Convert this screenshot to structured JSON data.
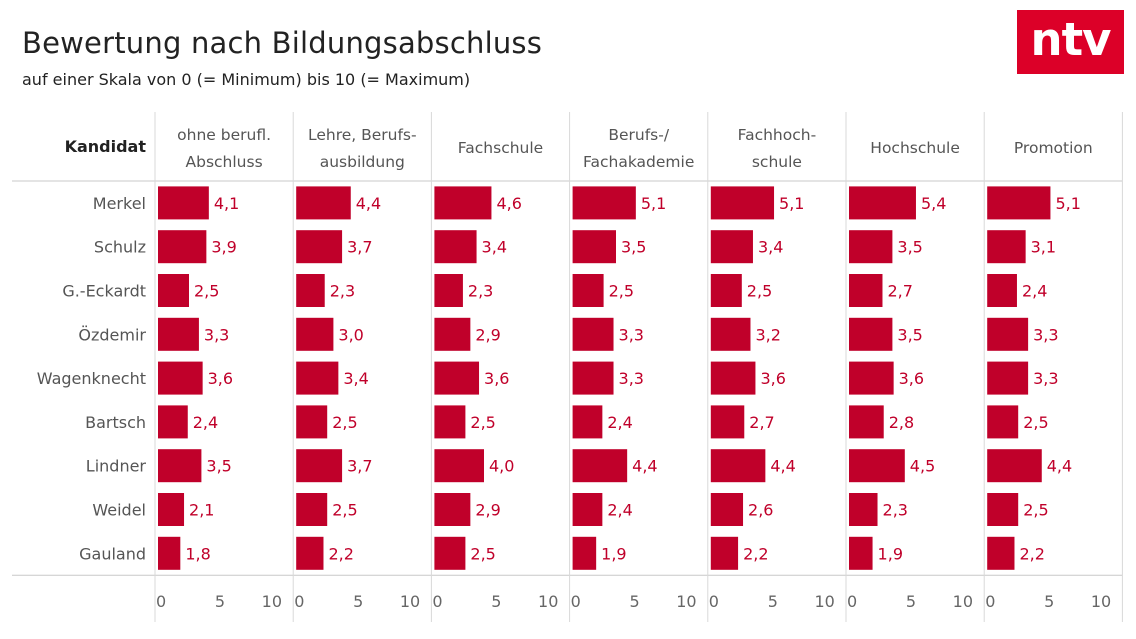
{
  "header": {
    "title": "Bewertung nach Bildungsabschluss",
    "subtitle": "auf einer Skala von 0 (= Minimum) bis 10 (= Maximum)",
    "logo_text": "ntv"
  },
  "chart_data": {
    "type": "bar",
    "title": "Bewertung nach Bildungsabschluss",
    "subtitle": "auf einer Skala von 0 (= Minimum) bis 10 (= Maximum)",
    "row_header": "Kandidat",
    "categories": [
      "Merkel",
      "Schulz",
      "G.-Eckardt",
      "Özdemir",
      "Wagenknecht",
      "Bartsch",
      "Lindner",
      "Weidel",
      "Gauland"
    ],
    "xlim": [
      0,
      10
    ],
    "xticks": [
      "0",
      "5",
      "10"
    ],
    "series": [
      {
        "name": [
          "ohne berufl.",
          "Abschluss"
        ],
        "values": [
          4.1,
          3.9,
          2.5,
          3.3,
          3.6,
          2.4,
          3.5,
          2.1,
          1.8
        ],
        "labels": [
          "4,1",
          "3,9",
          "2,5",
          "3,3",
          "3,6",
          "2,4",
          "3,5",
          "2,1",
          "1,8"
        ]
      },
      {
        "name": [
          "Lehre, Berufs-",
          "ausbildung"
        ],
        "values": [
          4.4,
          3.7,
          2.3,
          3.0,
          3.4,
          2.5,
          3.7,
          2.5,
          2.2
        ],
        "labels": [
          "4,4",
          "3,7",
          "2,3",
          "3,0",
          "3,4",
          "2,5",
          "3,7",
          "2,5",
          "2,2"
        ]
      },
      {
        "name": [
          "Fachschule"
        ],
        "values": [
          4.6,
          3.4,
          2.3,
          2.9,
          3.6,
          2.5,
          4.0,
          2.9,
          2.5
        ],
        "labels": [
          "4,6",
          "3,4",
          "2,3",
          "2,9",
          "3,6",
          "2,5",
          "4,0",
          "2,9",
          "2,5"
        ]
      },
      {
        "name": [
          "Berufs-/",
          "Fachakademie"
        ],
        "values": [
          5.1,
          3.5,
          2.5,
          3.3,
          3.3,
          2.4,
          4.4,
          2.4,
          1.9
        ],
        "labels": [
          "5,1",
          "3,5",
          "2,5",
          "3,3",
          "3,3",
          "2,4",
          "4,4",
          "2,4",
          "1,9"
        ]
      },
      {
        "name": [
          "Fachhoch-",
          "schule"
        ],
        "values": [
          5.1,
          3.4,
          2.5,
          3.2,
          3.6,
          2.7,
          4.4,
          2.6,
          2.2
        ],
        "labels": [
          "5,1",
          "3,4",
          "2,5",
          "3,2",
          "3,6",
          "2,7",
          "4,4",
          "2,6",
          "2,2"
        ]
      },
      {
        "name": [
          "Hochschule"
        ],
        "values": [
          5.4,
          3.5,
          2.7,
          3.5,
          3.6,
          2.8,
          4.5,
          2.3,
          1.9
        ],
        "labels": [
          "5,4",
          "3,5",
          "2,7",
          "3,5",
          "3,6",
          "2,8",
          "4,5",
          "2,3",
          "1,9"
        ]
      },
      {
        "name": [
          "Promotion"
        ],
        "values": [
          5.1,
          3.1,
          2.4,
          3.3,
          3.3,
          2.5,
          4.4,
          2.5,
          2.2
        ],
        "labels": [
          "5,1",
          "3,1",
          "2,4",
          "3,3",
          "3,3",
          "2,5",
          "4,4",
          "2,5",
          "2,2"
        ]
      }
    ],
    "colors": {
      "bar": "#c0002a",
      "label": "#c0002a",
      "grid": "#d9d9d9",
      "text": "#555555"
    }
  }
}
